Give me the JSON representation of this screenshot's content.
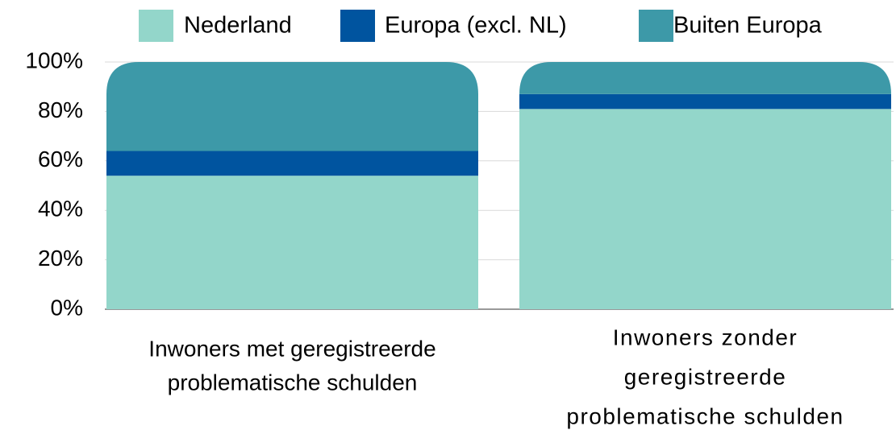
{
  "chart_data": {
    "type": "stacked_bar",
    "categories": [
      [
        "Inwoners met geregistreerde",
        "problematische schulden"
      ],
      [
        "Inwoners zonder",
        "geregistreerde",
        "problematische schulden"
      ]
    ],
    "series": [
      {
        "name": "Nederland",
        "color": "#93d6ca",
        "values": [
          54,
          81
        ]
      },
      {
        "name": "Europa (excl. NL)",
        "color": "#00549f",
        "values": [
          10,
          6
        ]
      },
      {
        "name": "Buiten Europa",
        "color": "#3d99a8",
        "values": [
          36,
          13
        ]
      }
    ],
    "ylim": [
      0,
      100
    ],
    "yticks": [
      {
        "value": 0,
        "label": "0%"
      },
      {
        "value": 20,
        "label": "20%"
      },
      {
        "value": 40,
        "label": "40%"
      },
      {
        "value": 60,
        "label": "60%"
      },
      {
        "value": 80,
        "label": "80%"
      },
      {
        "value": 100,
        "label": "100%"
      }
    ],
    "grid": true,
    "legend": "top"
  }
}
